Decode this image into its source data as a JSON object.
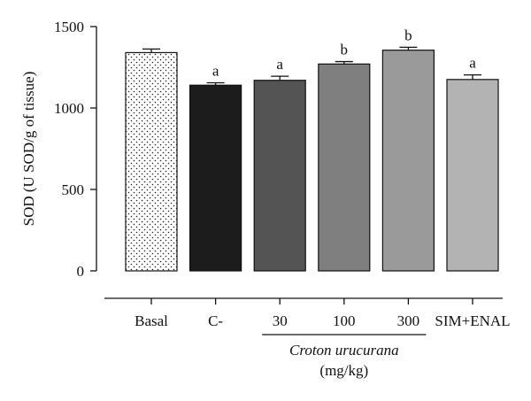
{
  "chart_data": {
    "type": "bar",
    "ylabel": "SOD (U SOD/g of tissue)",
    "ylim": [
      0,
      1500
    ],
    "yticks": [
      0,
      500,
      1000,
      1500
    ],
    "categories": [
      "Basal",
      "C-",
      "30",
      "100",
      "300",
      "SIM+ENAL"
    ],
    "values": [
      1340,
      1140,
      1170,
      1270,
      1355,
      1175
    ],
    "errors": [
      22,
      15,
      25,
      15,
      18,
      28
    ],
    "significance": [
      "",
      "a",
      "a",
      "b",
      "b",
      "a"
    ],
    "fill_colors": [
      "#ffffff",
      "#1c1c1c",
      "#545454",
      "#7f7f7f",
      "#9a9a9a",
      "#b3b3b3"
    ],
    "patterns": [
      "dots",
      "",
      "",
      "",
      "",
      ""
    ],
    "group_label": {
      "name": "Croton urucurana",
      "unit": "(mg/kg)",
      "spans": [
        "30",
        "100",
        "300"
      ]
    },
    "grid": false,
    "legend": "none"
  }
}
